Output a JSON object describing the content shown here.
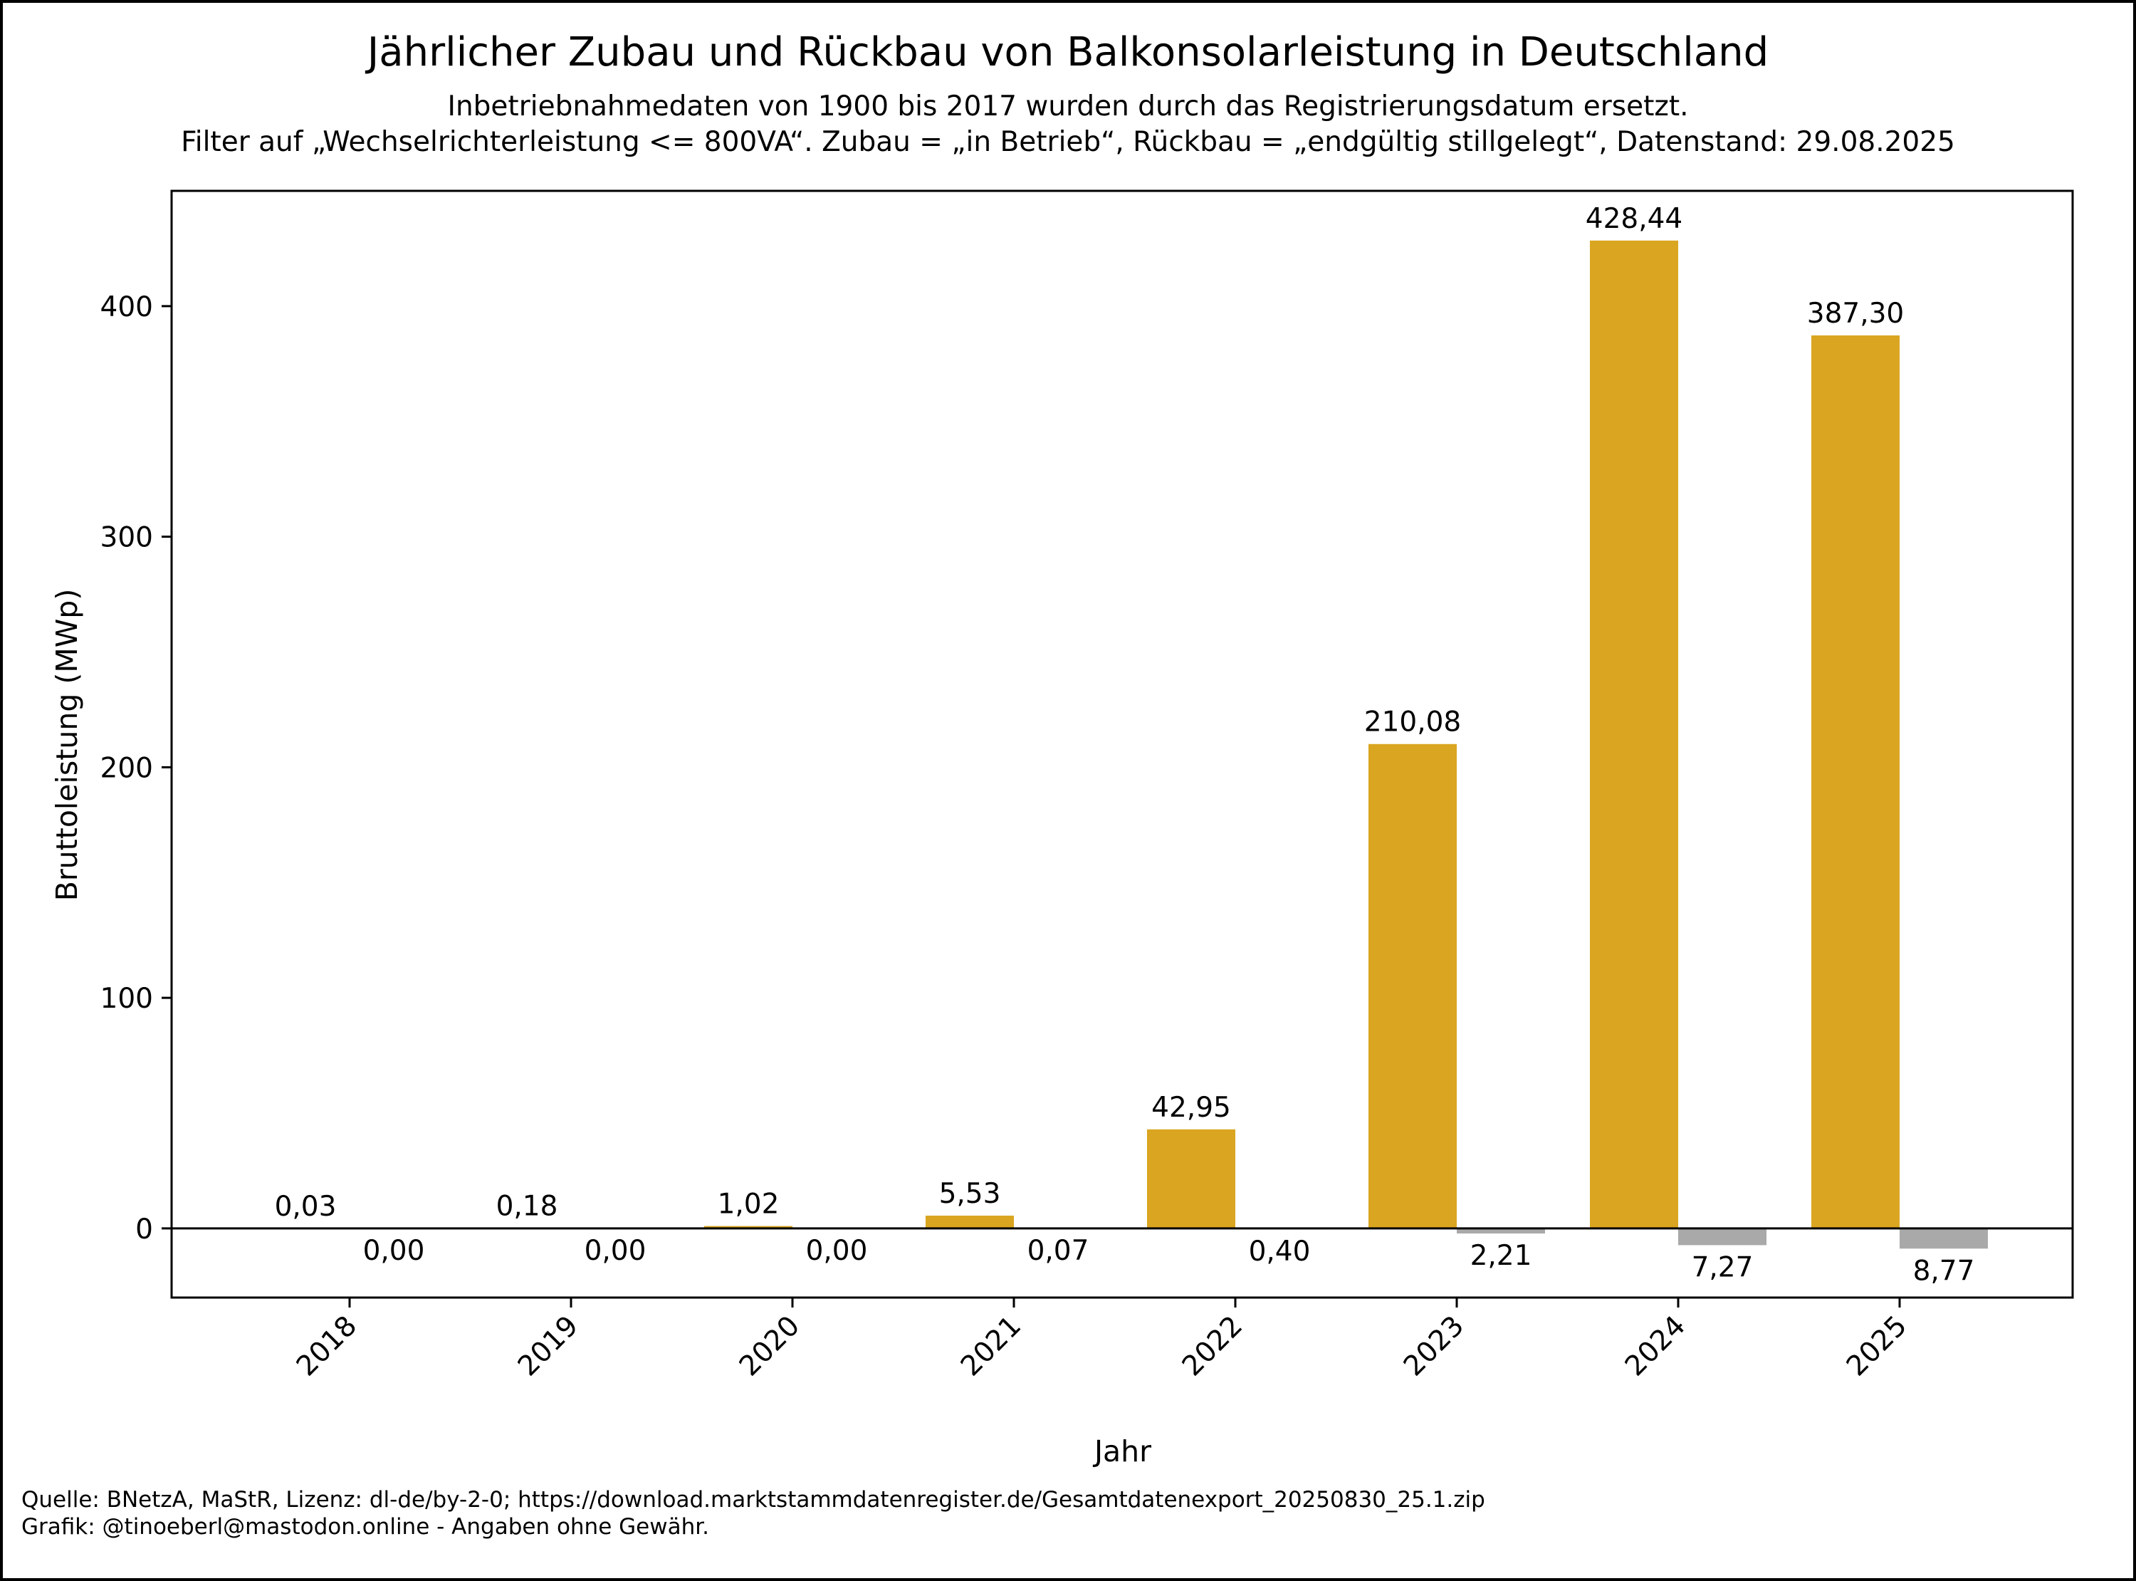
{
  "chart_data": {
    "type": "bar",
    "title": "Jährlicher Zubau und Rückbau von Balkonsolarleistung in Deutschland",
    "subtitle_lines": [
      "Inbetriebnahmedaten von 1900 bis 2017 wurden durch das Registrierungsdatum ersetzt.",
      "Filter auf „Wechselrichterleistung <= 800VA“. Zubau = „in Betrieb“, Rückbau = „endgültig stillgelegt“, Datenstand: 29.08.2025"
    ],
    "xlabel": "Jahr",
    "ylabel": "Bruttoleistung (MWp)",
    "categories": [
      "2018",
      "2019",
      "2020",
      "2021",
      "2022",
      "2023",
      "2024",
      "2025"
    ],
    "series": [
      {
        "key": "zubau",
        "color": "#DAA520",
        "values": [
          0.03,
          0.18,
          1.02,
          5.53,
          42.95,
          210.08,
          428.44,
          387.3
        ],
        "labels": [
          "0,03",
          "0,18",
          "1,02",
          "5,53",
          "42,95",
          "210,08",
          "428,44",
          "387,30"
        ]
      },
      {
        "key": "rueckbau",
        "color": "#A9A9A9",
        "values": [
          0.0,
          0.0,
          0.0,
          -0.07,
          -0.4,
          -2.21,
          -7.27,
          -8.77
        ],
        "labels": [
          "0,00",
          "0,00",
          "0,00",
          "0,07",
          "0,40",
          "2,21",
          "7,27",
          "8,77"
        ]
      }
    ],
    "ylim": [
      -30,
      450
    ],
    "yticks": [
      0,
      100,
      200,
      300,
      400
    ],
    "grid": false,
    "zero_line": true
  },
  "footer": {
    "line1": "Quelle: BNetzA, MaStR, Lizenz: dl-de/by-2-0; https://download.marktstammdatenregister.de/Gesamtdatenexport_20250830_25.1.zip",
    "line2": "Grafik: @tinoeberl@mastodon.online - Angaben ohne Gewähr."
  }
}
